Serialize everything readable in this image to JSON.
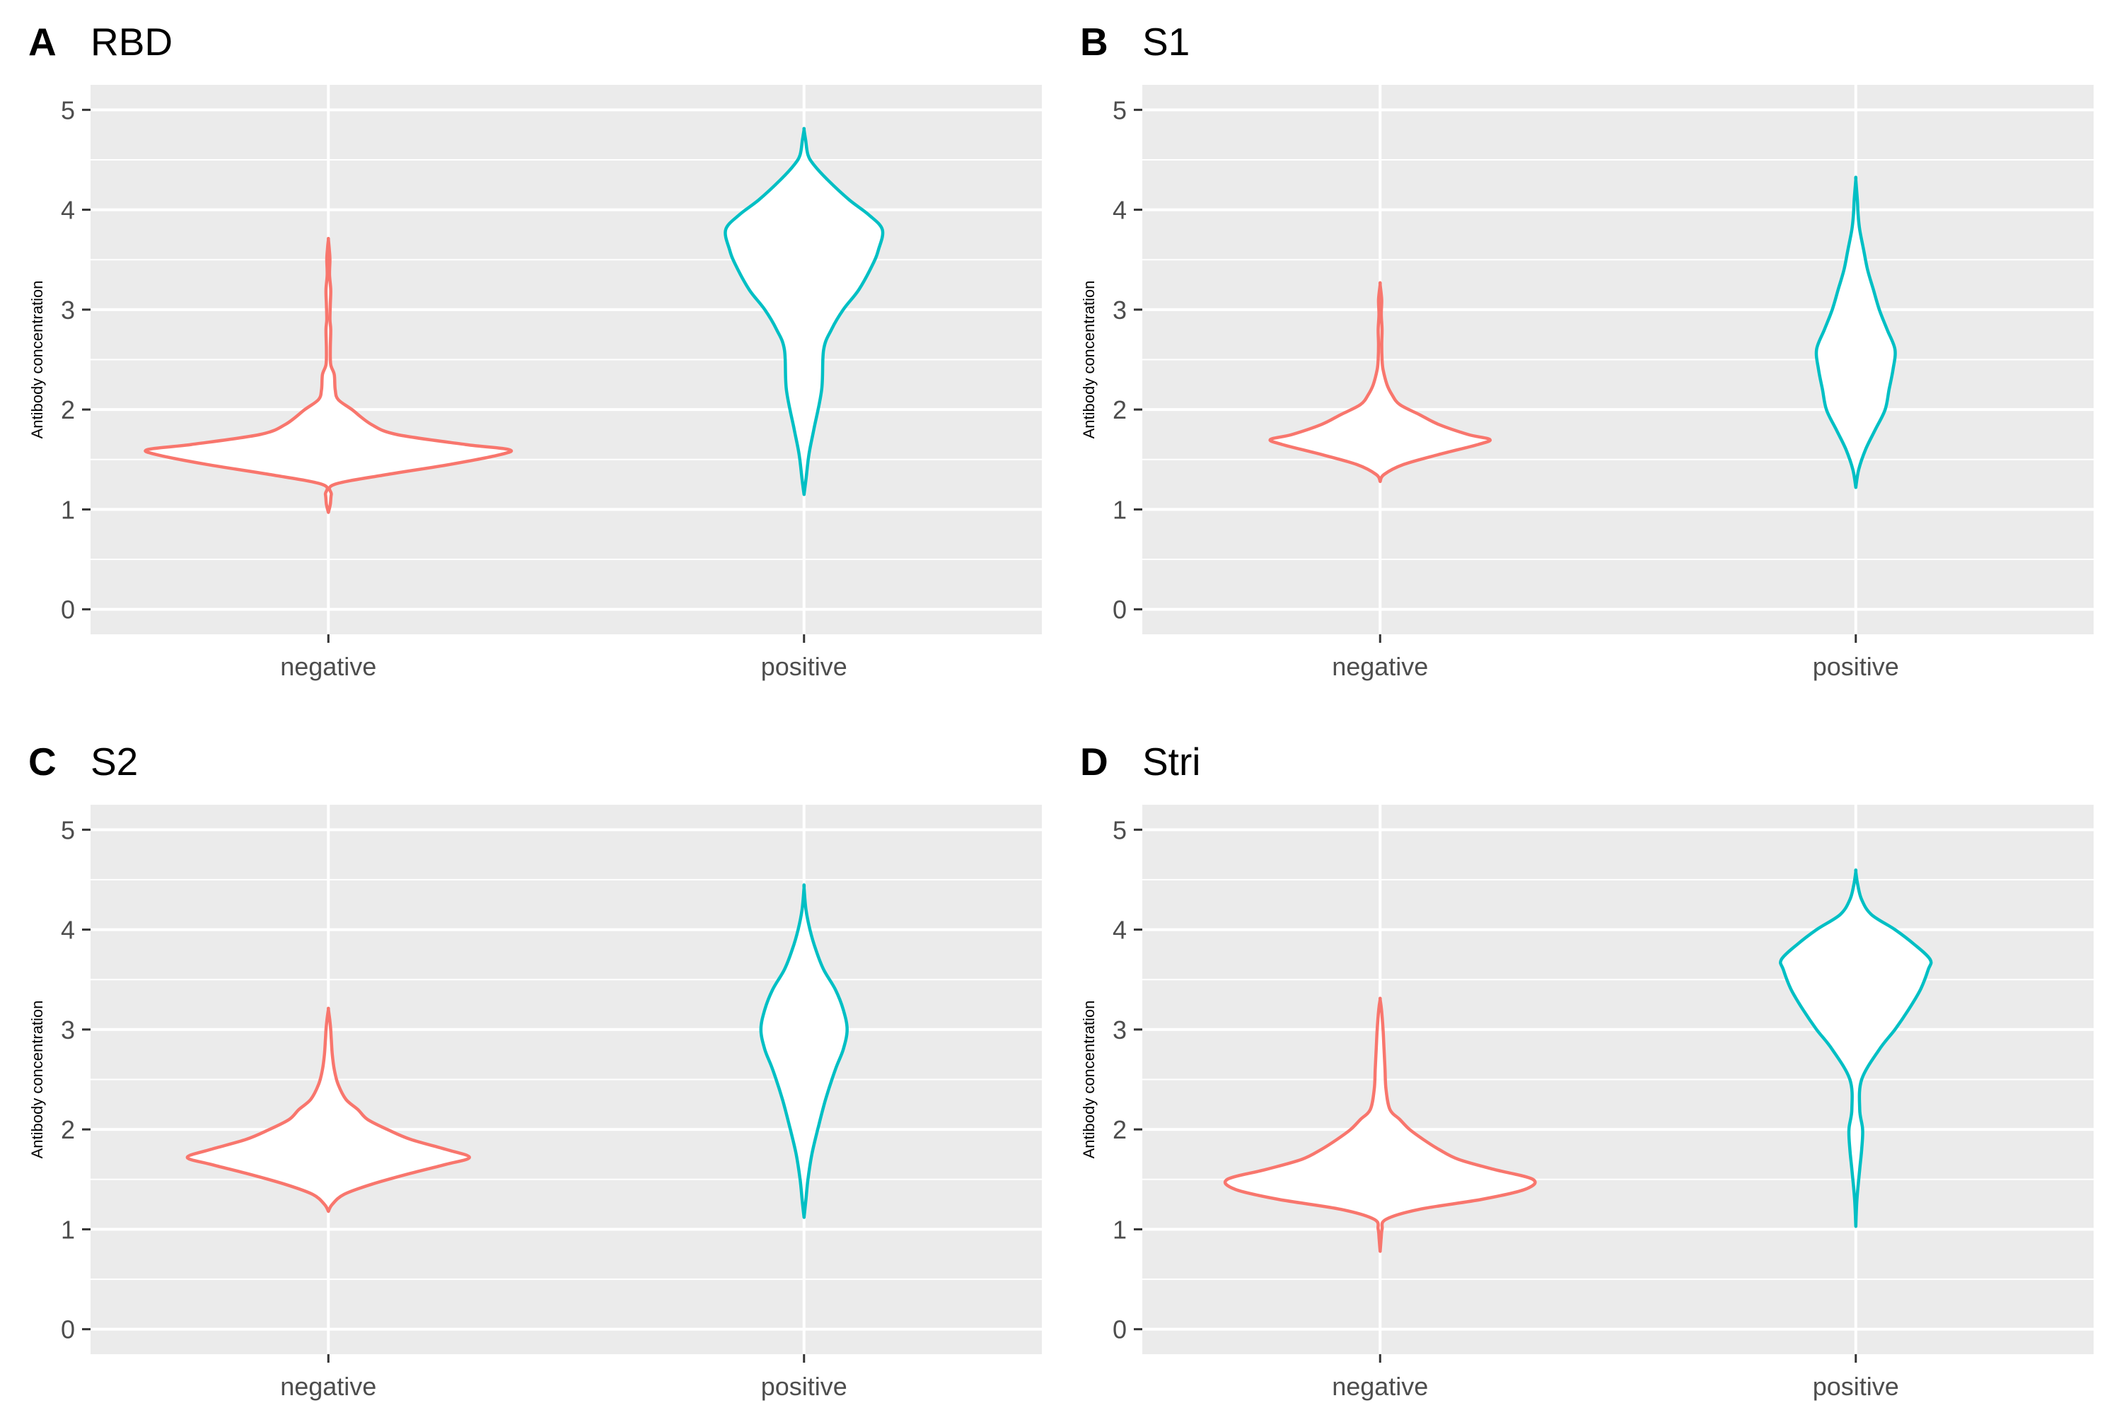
{
  "chart_data": [
    {
      "type": "violin",
      "tag": "A",
      "title": "RBD",
      "xlabel": "",
      "ylabel": "Antibody concentration",
      "categories": [
        "negative",
        "positive"
      ],
      "ylim": [
        -0.25,
        5.25
      ],
      "yticks": [
        0,
        1,
        2,
        3,
        4,
        5
      ],
      "series": [
        {
          "name": "negative",
          "color": "#F8766D",
          "profile": [
            [
              0.97,
              0.0
            ],
            [
              1.05,
              0.01
            ],
            [
              1.15,
              0.015
            ],
            [
              1.25,
              0.03
            ],
            [
              1.35,
              0.3
            ],
            [
              1.45,
              0.62
            ],
            [
              1.55,
              0.88
            ],
            [
              1.6,
              0.92
            ],
            [
              1.65,
              0.7
            ],
            [
              1.75,
              0.35
            ],
            [
              1.85,
              0.22
            ],
            [
              2.0,
              0.12
            ],
            [
              2.1,
              0.05
            ],
            [
              2.2,
              0.035
            ],
            [
              2.35,
              0.03
            ],
            [
              2.45,
              0.012
            ],
            [
              2.6,
              0.01
            ],
            [
              2.8,
              0.012
            ],
            [
              2.9,
              0.008
            ],
            [
              3.05,
              0.01
            ],
            [
              3.2,
              0.012
            ],
            [
              3.35,
              0.006
            ],
            [
              3.5,
              0.008
            ],
            [
              3.6,
              0.005
            ],
            [
              3.7,
              0.0
            ]
          ]
        },
        {
          "name": "positive",
          "color": "#00BFC4",
          "profile": [
            [
              1.15,
              0.0
            ],
            [
              1.3,
              0.01
            ],
            [
              1.55,
              0.025
            ],
            [
              1.8,
              0.05
            ],
            [
              2.2,
              0.09
            ],
            [
              2.6,
              0.1
            ],
            [
              2.8,
              0.14
            ],
            [
              3.0,
              0.2
            ],
            [
              3.2,
              0.28
            ],
            [
              3.45,
              0.35
            ],
            [
              3.6,
              0.38
            ],
            [
              3.8,
              0.4
            ],
            [
              3.95,
              0.33
            ],
            [
              4.1,
              0.23
            ],
            [
              4.3,
              0.12
            ],
            [
              4.45,
              0.05
            ],
            [
              4.55,
              0.02
            ],
            [
              4.7,
              0.008
            ],
            [
              4.8,
              0.0
            ]
          ]
        }
      ]
    },
    {
      "type": "violin",
      "tag": "B",
      "title": "S1",
      "xlabel": "",
      "ylabel": "Antibody concentration",
      "categories": [
        "negative",
        "positive"
      ],
      "ylim": [
        -0.25,
        5.25
      ],
      "yticks": [
        0,
        1,
        2,
        3,
        4,
        5
      ],
      "series": [
        {
          "name": "negative",
          "color": "#F8766D",
          "profile": [
            [
              1.28,
              0.0
            ],
            [
              1.35,
              0.02
            ],
            [
              1.45,
              0.12
            ],
            [
              1.55,
              0.3
            ],
            [
              1.65,
              0.5
            ],
            [
              1.7,
              0.56
            ],
            [
              1.75,
              0.45
            ],
            [
              1.85,
              0.3
            ],
            [
              1.95,
              0.2
            ],
            [
              2.05,
              0.1
            ],
            [
              2.15,
              0.06
            ],
            [
              2.25,
              0.035
            ],
            [
              2.4,
              0.015
            ],
            [
              2.5,
              0.01
            ],
            [
              2.65,
              0.008
            ],
            [
              2.8,
              0.01
            ],
            [
              2.95,
              0.006
            ],
            [
              3.1,
              0.008
            ],
            [
              3.25,
              0.0
            ]
          ]
        },
        {
          "name": "positive",
          "color": "#00BFC4",
          "profile": [
            [
              1.22,
              0.0
            ],
            [
              1.4,
              0.015
            ],
            [
              1.6,
              0.05
            ],
            [
              1.8,
              0.1
            ],
            [
              2.0,
              0.15
            ],
            [
              2.2,
              0.17
            ],
            [
              2.4,
              0.19
            ],
            [
              2.6,
              0.2
            ],
            [
              2.8,
              0.16
            ],
            [
              3.0,
              0.12
            ],
            [
              3.2,
              0.09
            ],
            [
              3.4,
              0.06
            ],
            [
              3.6,
              0.04
            ],
            [
              3.8,
              0.02
            ],
            [
              3.95,
              0.012
            ],
            [
              4.1,
              0.008
            ],
            [
              4.3,
              0.0
            ]
          ]
        }
      ]
    },
    {
      "type": "violin",
      "tag": "C",
      "title": "S2",
      "xlabel": "",
      "ylabel": "Antibody concentration",
      "categories": [
        "negative",
        "positive"
      ],
      "ylim": [
        -0.25,
        5.25
      ],
      "yticks": [
        0,
        1,
        2,
        3,
        4,
        5
      ],
      "series": [
        {
          "name": "negative",
          "color": "#F8766D",
          "profile": [
            [
              1.18,
              0.0
            ],
            [
              1.25,
              0.02
            ],
            [
              1.35,
              0.08
            ],
            [
              1.45,
              0.22
            ],
            [
              1.55,
              0.4
            ],
            [
              1.65,
              0.6
            ],
            [
              1.72,
              0.72
            ],
            [
              1.8,
              0.6
            ],
            [
              1.9,
              0.42
            ],
            [
              2.0,
              0.3
            ],
            [
              2.1,
              0.2
            ],
            [
              2.2,
              0.15
            ],
            [
              2.3,
              0.09
            ],
            [
              2.45,
              0.05
            ],
            [
              2.6,
              0.03
            ],
            [
              2.75,
              0.02
            ],
            [
              2.9,
              0.015
            ],
            [
              3.0,
              0.012
            ],
            [
              3.1,
              0.007
            ],
            [
              3.2,
              0.0
            ]
          ]
        },
        {
          "name": "positive",
          "color": "#00BFC4",
          "profile": [
            [
              1.12,
              0.0
            ],
            [
              1.3,
              0.01
            ],
            [
              1.5,
              0.02
            ],
            [
              1.75,
              0.04
            ],
            [
              2.0,
              0.07
            ],
            [
              2.3,
              0.11
            ],
            [
              2.6,
              0.16
            ],
            [
              2.8,
              0.2
            ],
            [
              3.0,
              0.22
            ],
            [
              3.2,
              0.2
            ],
            [
              3.4,
              0.16
            ],
            [
              3.6,
              0.1
            ],
            [
              3.8,
              0.06
            ],
            [
              4.0,
              0.03
            ],
            [
              4.2,
              0.01
            ],
            [
              4.42,
              0.0
            ]
          ]
        }
      ]
    },
    {
      "type": "violin",
      "tag": "D",
      "title": "Stri",
      "xlabel": "",
      "ylabel": "Antibody concentration",
      "categories": [
        "negative",
        "positive"
      ],
      "ylim": [
        -0.25,
        5.25
      ],
      "yticks": [
        0,
        1,
        2,
        3,
        4,
        5
      ],
      "series": [
        {
          "name": "negative",
          "color": "#F8766D",
          "profile": [
            [
              0.78,
              0.0
            ],
            [
              0.9,
              0.005
            ],
            [
              1.0,
              0.01
            ],
            [
              1.1,
              0.03
            ],
            [
              1.2,
              0.2
            ],
            [
              1.3,
              0.52
            ],
            [
              1.4,
              0.74
            ],
            [
              1.5,
              0.78
            ],
            [
              1.6,
              0.58
            ],
            [
              1.7,
              0.4
            ],
            [
              1.8,
              0.3
            ],
            [
              1.9,
              0.22
            ],
            [
              2.0,
              0.15
            ],
            [
              2.1,
              0.1
            ],
            [
              2.2,
              0.05
            ],
            [
              2.4,
              0.03
            ],
            [
              2.6,
              0.025
            ],
            [
              2.8,
              0.02
            ],
            [
              3.0,
              0.015
            ],
            [
              3.2,
              0.007
            ],
            [
              3.3,
              0.0
            ]
          ]
        },
        {
          "name": "positive",
          "color": "#00BFC4",
          "profile": [
            [
              1.03,
              0.0
            ],
            [
              1.3,
              0.006
            ],
            [
              1.6,
              0.02
            ],
            [
              1.8,
              0.03
            ],
            [
              2.0,
              0.035
            ],
            [
              2.2,
              0.02
            ],
            [
              2.5,
              0.03
            ],
            [
              2.8,
              0.12
            ],
            [
              3.0,
              0.2
            ],
            [
              3.2,
              0.27
            ],
            [
              3.4,
              0.33
            ],
            [
              3.6,
              0.37
            ],
            [
              3.7,
              0.38
            ],
            [
              3.85,
              0.3
            ],
            [
              4.0,
              0.2
            ],
            [
              4.15,
              0.08
            ],
            [
              4.3,
              0.03
            ],
            [
              4.45,
              0.01
            ],
            [
              4.58,
              0.0
            ]
          ]
        }
      ]
    }
  ]
}
